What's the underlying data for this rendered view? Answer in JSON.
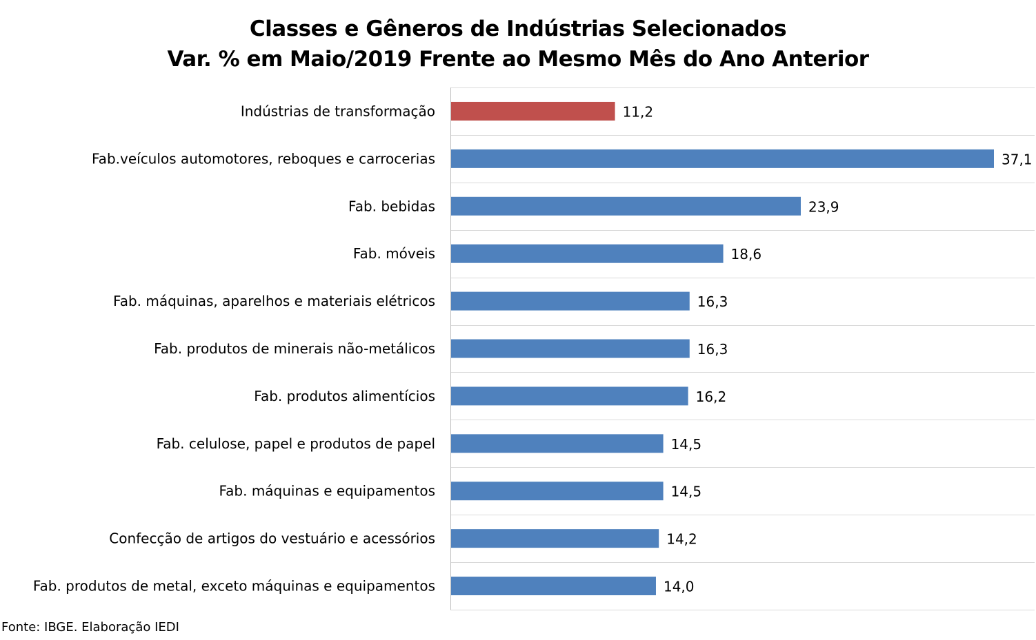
{
  "chart_data": {
    "type": "bar",
    "orientation": "horizontal",
    "title": "Classes e Gêneros de Indústrias Selecionados",
    "subtitle": "Var. % em Maio/2019 Frente ao Mesmo Mês do Ano Anterior",
    "categories": [
      "Indústrias de transformação",
      "Fab.veículos automotores, reboques e carrocerias",
      "Fab. bebidas",
      "Fab. móveis",
      "Fab. máquinas, aparelhos e materiais elétricos",
      "Fab. produtos de minerais não-metálicos",
      "Fab. produtos alimentícios",
      "Fab. celulose, papel e produtos de papel",
      "Fab. máquinas e equipamentos",
      "Confecção de artigos do vestuário e acessórios",
      "Fab. produtos de metal, exceto máquinas e equipamentos"
    ],
    "values": [
      11.2,
      37.1,
      23.9,
      18.6,
      16.3,
      16.3,
      16.2,
      14.5,
      14.5,
      14.2,
      14.0
    ],
    "value_labels": [
      "11,2",
      "37,1",
      "23,9",
      "18,6",
      "16,3",
      "16,3",
      "16,2",
      "14,5",
      "14,5",
      "14,2",
      "14,0"
    ],
    "highlight_index": 0,
    "colors": {
      "highlight": "#C0504D",
      "default": "#4F81BD",
      "grid": "#D9D9D9",
      "axis": "#BFBFBF"
    },
    "xlim": [
      0,
      40
    ],
    "grid": "horizontal",
    "xlabel": "",
    "ylabel": "",
    "source": "Fonte: IBGE. Elaboração IEDI"
  }
}
